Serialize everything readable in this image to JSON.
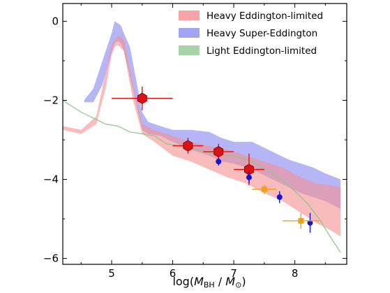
{
  "chart_data": {
    "type": "area",
    "xlabel_parts": {
      "log": "log(",
      "m1": "M",
      "sub1": "BH",
      "sep": " / ",
      "m2": "M",
      "sub2": "⊙",
      "close": ")"
    },
    "ylabel": "",
    "xlim": [
      4.2,
      8.85
    ],
    "ylim": [
      -6.15,
      0.45
    ],
    "xticks": [
      "5",
      "6",
      "7",
      "8"
    ],
    "yticks": [
      "0",
      "−2",
      "−4",
      "−6"
    ],
    "ytick_values": [
      0,
      -2,
      -4,
      -6
    ],
    "xtick_values": [
      5,
      6,
      7,
      8
    ],
    "grid": false,
    "legend_position": "top-right",
    "legend": [
      {
        "label": "Heavy Eddington-limited",
        "color": "#f79a9a"
      },
      {
        "label": "Heavy Super-Eddington",
        "color": "#9a9af5"
      },
      {
        "label": "Light Eddington-limited",
        "color": "#9ccf9c"
      }
    ],
    "series": [
      {
        "name": "Heavy Super-Eddington",
        "color": "#8f8ff2",
        "opacity": 0.65,
        "x": [
          4.55,
          4.7,
          4.85,
          5.0,
          5.05,
          5.1,
          5.15,
          5.2,
          5.3,
          5.5,
          5.6,
          5.8,
          6.0,
          6.3,
          6.6,
          6.8,
          7.0,
          7.3,
          7.5,
          7.7,
          7.9,
          8.1,
          8.3,
          8.5,
          8.75
        ],
        "upper": [
          -2.0,
          -1.7,
          -1.0,
          -0.3,
          0.0,
          -0.05,
          -0.1,
          -0.3,
          -0.65,
          -2.3,
          -2.55,
          -2.65,
          -2.75,
          -2.75,
          -2.8,
          -2.95,
          -3.05,
          -3.05,
          -3.2,
          -3.35,
          -3.5,
          -3.6,
          -3.7,
          -3.85,
          -4.0
        ],
        "lower": [
          -2.05,
          -2.05,
          -1.6,
          -0.8,
          -0.55,
          -0.5,
          -0.55,
          -0.75,
          -1.4,
          -2.75,
          -2.85,
          -2.9,
          -3.05,
          -3.25,
          -3.4,
          -3.55,
          -3.6,
          -3.75,
          -3.9,
          -4.05,
          -4.2,
          -4.35,
          -4.45,
          -4.55,
          -4.75
        ]
      },
      {
        "name": "Heavy Eddington-limited",
        "color": "#f59090",
        "opacity": 0.6,
        "x": [
          4.2,
          4.5,
          4.75,
          4.9,
          5.0,
          5.05,
          5.1,
          5.2,
          5.35,
          5.5,
          5.7,
          6.0,
          6.3,
          6.6,
          6.9,
          7.2,
          7.5,
          7.8,
          8.1,
          8.35,
          8.6,
          8.75
        ],
        "upper": [
          -2.65,
          -2.75,
          -2.4,
          -1.3,
          -0.6,
          -0.45,
          -0.35,
          -0.45,
          -1.6,
          -2.6,
          -2.75,
          -2.9,
          -3.05,
          -3.15,
          -3.25,
          -3.4,
          -3.55,
          -3.7,
          -3.95,
          -4.1,
          -4.15,
          -4.2
        ],
        "lower": [
          -2.75,
          -2.85,
          -2.6,
          -1.7,
          -0.85,
          -0.65,
          -0.6,
          -0.75,
          -2.0,
          -2.85,
          -3.05,
          -3.4,
          -3.55,
          -3.75,
          -3.95,
          -4.1,
          -4.35,
          -4.55,
          -4.85,
          -5.1,
          -5.3,
          -5.45
        ]
      },
      {
        "name": "Light Eddington-limited",
        "color": "#8cc88c",
        "opacity": 0.85,
        "x": [
          4.2,
          4.5,
          4.7,
          4.9,
          5.1,
          5.3,
          5.5,
          5.7,
          5.9,
          6.1,
          6.4,
          6.7,
          7.0,
          7.3,
          7.6,
          7.9,
          8.2,
          8.4,
          8.6,
          8.75
        ],
        "y": [
          -2.0,
          -2.3,
          -2.45,
          -2.6,
          -2.65,
          -2.8,
          -2.85,
          -2.9,
          -3.1,
          -3.15,
          -3.25,
          -3.35,
          -3.4,
          -3.55,
          -3.8,
          -4.15,
          -4.6,
          -5.0,
          -5.5,
          -5.85
        ]
      }
    ],
    "observations": [
      {
        "group": "red-hexagons",
        "color": "#e01010",
        "x": 5.5,
        "y": -1.95,
        "xerr": [
          0.5,
          0.5
        ],
        "yerr": [
          0.3,
          0.3
        ]
      },
      {
        "group": "red-hexagons",
        "color": "#e01010",
        "x": 6.25,
        "y": -3.15,
        "xerr": [
          0.25,
          0.25
        ],
        "yerr": [
          0.2,
          0.2
        ]
      },
      {
        "group": "red-hexagons",
        "color": "#e01010",
        "x": 6.75,
        "y": -3.3,
        "xerr": [
          0.25,
          0.25
        ],
        "yerr": [
          0.2,
          0.2
        ]
      },
      {
        "group": "red-hexagons",
        "color": "#e01010",
        "x": 7.25,
        "y": -3.75,
        "xerr": [
          0.25,
          0.25
        ],
        "yerr": [
          0.4,
          0.4
        ]
      },
      {
        "group": "blue-dots",
        "color": "#1414d8",
        "x": 6.75,
        "y": -3.55,
        "xerr": [
          0,
          0
        ],
        "yerr": [
          0.1,
          0.1
        ]
      },
      {
        "group": "blue-dots",
        "color": "#1414d8",
        "x": 7.25,
        "y": -3.95,
        "xerr": [
          0,
          0
        ],
        "yerr": [
          0.15,
          0.15
        ]
      },
      {
        "group": "blue-dots",
        "color": "#1414d8",
        "x": 7.75,
        "y": -4.45,
        "xerr": [
          0,
          0
        ],
        "yerr": [
          0.15,
          0.15
        ]
      },
      {
        "group": "blue-dots",
        "color": "#1414d8",
        "x": 8.25,
        "y": -5.1,
        "xerr": [
          0,
          0
        ],
        "yerr": [
          0.25,
          0.25
        ]
      },
      {
        "group": "orange-squares",
        "color": "#f0a020",
        "x": 7.5,
        "y": -4.25,
        "xerr": [
          0.2,
          0.2
        ],
        "yerr": [
          0.12,
          0.12
        ]
      },
      {
        "group": "orange-squares",
        "color": "#f0a020",
        "x": 8.1,
        "y": -5.05,
        "xerr": [
          0.3,
          0.3
        ],
        "yerr": [
          0.2,
          0.2
        ]
      }
    ]
  }
}
